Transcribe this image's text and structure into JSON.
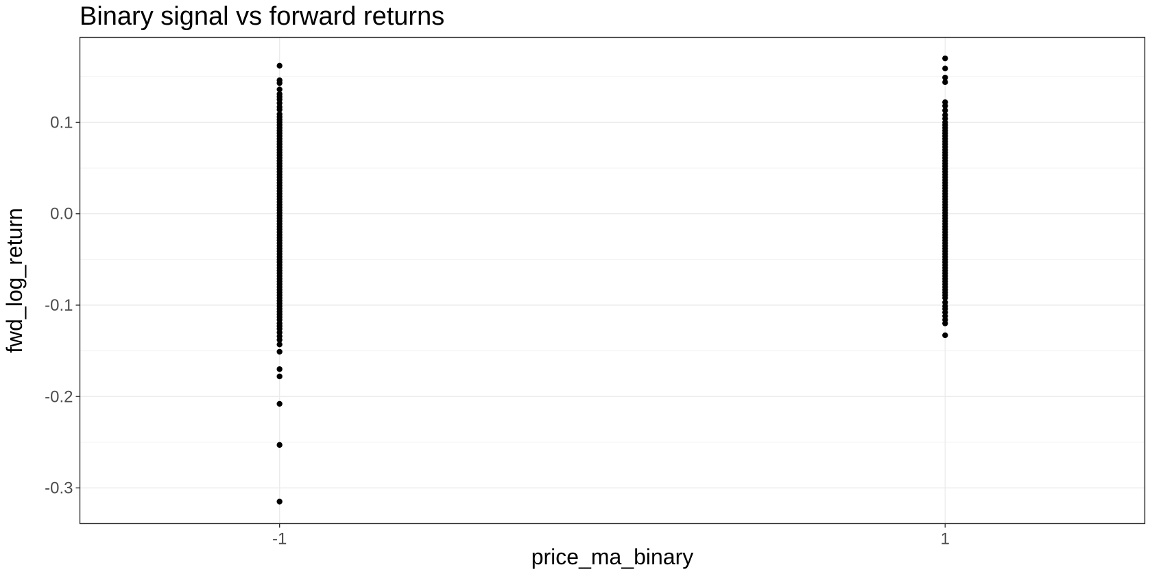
{
  "chart_data": {
    "type": "scatter",
    "title": "Binary signal vs forward returns",
    "xlabel": "price_ma_binary",
    "ylabel": "fwd_log_return",
    "x_ticks": [
      "-1",
      "1"
    ],
    "y_ticks": [
      "0.1",
      "0.0",
      "-0.1",
      "-0.2",
      "-0.3"
    ],
    "xlim": [
      -1.6,
      1.6
    ],
    "ylim": [
      -0.339,
      0.193
    ],
    "grid": true,
    "point_color": "#000000",
    "series": [
      {
        "x": -1,
        "values": [
          0.162,
          0.146,
          0.143,
          0.136,
          0.131,
          0.128,
          0.125,
          0.121,
          0.117,
          0.114,
          0.109,
          0.106,
          0.103,
          0.1,
          0.097,
          0.094,
          0.091,
          0.088,
          0.085,
          0.082,
          0.079,
          0.076,
          0.073,
          0.07,
          0.067,
          0.064,
          0.061,
          0.058,
          0.055,
          0.052,
          0.049,
          0.046,
          0.043,
          0.04,
          0.037,
          0.034,
          0.031,
          0.028,
          0.025,
          0.022,
          0.019,
          0.016,
          0.013,
          0.01,
          0.007,
          0.004,
          0.001,
          -0.002,
          -0.005,
          -0.008,
          -0.011,
          -0.014,
          -0.017,
          -0.02,
          -0.023,
          -0.026,
          -0.029,
          -0.032,
          -0.035,
          -0.038,
          -0.041,
          -0.044,
          -0.047,
          -0.05,
          -0.053,
          -0.056,
          -0.059,
          -0.062,
          -0.065,
          -0.068,
          -0.071,
          -0.074,
          -0.077,
          -0.08,
          -0.083,
          -0.086,
          -0.089,
          -0.092,
          -0.095,
          -0.098,
          -0.101,
          -0.104,
          -0.107,
          -0.11,
          -0.113,
          -0.116,
          -0.12,
          -0.123,
          -0.126,
          -0.13,
          -0.134,
          -0.138,
          -0.143,
          -0.151,
          -0.17,
          -0.178,
          -0.208,
          -0.253,
          -0.315
        ]
      },
      {
        "x": 1,
        "values": [
          0.17,
          0.159,
          0.149,
          0.144,
          0.122,
          0.118,
          0.113,
          0.108,
          0.104,
          0.1,
          0.097,
          0.094,
          0.091,
          0.088,
          0.085,
          0.082,
          0.079,
          0.076,
          0.073,
          0.07,
          0.067,
          0.064,
          0.061,
          0.058,
          0.055,
          0.052,
          0.049,
          0.046,
          0.043,
          0.04,
          0.037,
          0.034,
          0.031,
          0.028,
          0.025,
          0.022,
          0.019,
          0.016,
          0.013,
          0.01,
          0.007,
          0.004,
          0.001,
          -0.002,
          -0.005,
          -0.008,
          -0.011,
          -0.014,
          -0.017,
          -0.02,
          -0.023,
          -0.026,
          -0.029,
          -0.032,
          -0.035,
          -0.038,
          -0.041,
          -0.044,
          -0.047,
          -0.05,
          -0.053,
          -0.056,
          -0.059,
          -0.062,
          -0.065,
          -0.068,
          -0.071,
          -0.074,
          -0.077,
          -0.08,
          -0.083,
          -0.086,
          -0.089,
          -0.092,
          -0.097,
          -0.101,
          -0.104,
          -0.108,
          -0.112,
          -0.116,
          -0.12,
          -0.133
        ]
      }
    ]
  }
}
